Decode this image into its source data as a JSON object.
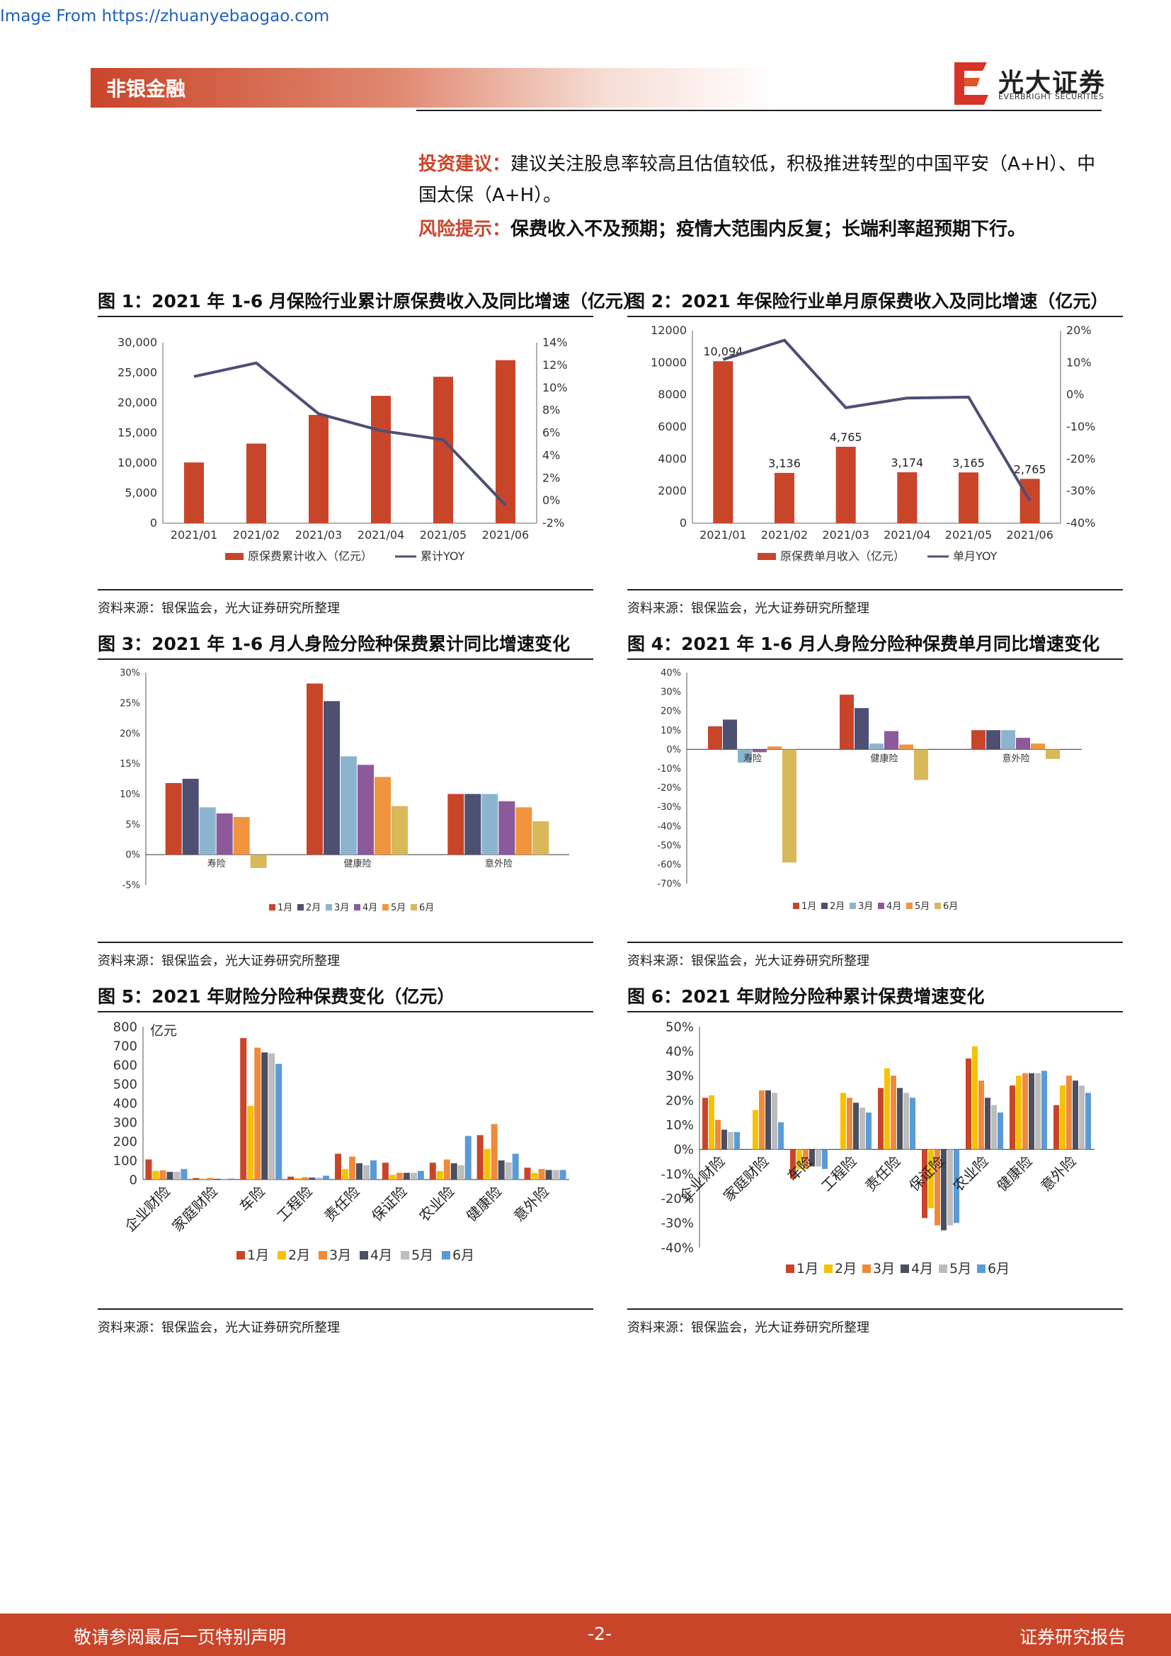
{
  "watermark": "Image From https://zhuanyebaogao.com",
  "header": {
    "section": "非银金融",
    "logo_cn": "光大证券",
    "logo_en": "EVERBRIGHT SECURITIES"
  },
  "advice": {
    "invest_label": "投资建议：",
    "invest_text": "建议关注股息率较高且估值较低，积极推进转型的中国平安（A+H）、中国太保（A+H）。",
    "risk_label": "风险提示：",
    "risk_text": "保费收入不及预期；疫情大范围内反复；长端利率超预期下行。"
  },
  "figures": [
    {
      "title": "图 1：2021 年 1-6 月保险行业累计原保费收入及同比增速（亿元）",
      "source": "资料来源：银保监会，光大证券研究所整理"
    },
    {
      "title": "图 2：2021 年保险行业单月原保费收入及同比增速（亿元）",
      "source": "资料来源：银保监会，光大证券研究所整理"
    },
    {
      "title": "图 3：2021 年 1-6 月人身险分险种保费累计同比增速变化",
      "source": "资料来源：银保监会，光大证券研究所整理"
    },
    {
      "title": "图 4：2021 年 1-6 月人身险分险种保费单月同比增速变化",
      "source": "资料来源：银保监会，光大证券研究所整理"
    },
    {
      "title": "图 5：2021 年财险分险种保费变化（亿元）",
      "source": "资料来源：银保监会，光大证券研究所整理"
    },
    {
      "title": "图 6：2021 年财险分险种累计保费增速变化",
      "source": "资料来源：银保监会，光大证券研究所整理"
    }
  ],
  "colors": {
    "bar_red": "#c9452a",
    "line_navy": "#4d4f73",
    "c1": "#c9452a",
    "c2": "#4d4f73",
    "c3": "#8db4cf",
    "c4": "#8c5a9a",
    "c5": "#f0943f",
    "c6": "#d9b85a",
    "p1": "#c9452a",
    "p2": "#f5c200",
    "p3": "#f08a3a",
    "p4": "#4a5060",
    "p5": "#bdbdbd",
    "p6": "#5b9bd5"
  },
  "chart_data": [
    {
      "type": "bar",
      "categories": [
        "2021/01",
        "2021/02",
        "2021/03",
        "2021/04",
        "2021/05",
        "2021/06"
      ],
      "series": [
        {
          "name": "原保费累计收入（亿元）",
          "values": [
            10094,
            13230,
            17995,
            21169,
            24334,
            27099
          ],
          "axis": "left"
        },
        {
          "name": "累计YOY",
          "type": "line",
          "values": [
            11.0,
            12.2,
            7.7,
            6.2,
            5.4,
            -0.4
          ],
          "axis": "right",
          "unit": "%"
        }
      ],
      "y_ticks": [
        "30,000",
        "25,000",
        "20,000",
        "15,000",
        "10,000",
        "5,000",
        "0"
      ],
      "y2_ticks": [
        "14%",
        "12%",
        "10%",
        "8%",
        "6%",
        "4%",
        "2%",
        "0%",
        "-2%"
      ],
      "ylim": [
        0,
        30000
      ],
      "y2lim": [
        -2,
        14
      ],
      "legend": "bottom"
    },
    {
      "type": "bar",
      "categories": [
        "2021/01",
        "2021/02",
        "2021/03",
        "2021/04",
        "2021/05",
        "2021/06"
      ],
      "series": [
        {
          "name": "原保费单月收入（亿元）",
          "values": [
            10094,
            3136,
            4765,
            3174,
            3165,
            2765
          ],
          "labels": [
            "10,094",
            "3,136",
            "4,765",
            "3,174",
            "3,165",
            "2,765"
          ],
          "axis": "left"
        },
        {
          "name": "单月YOY",
          "type": "line",
          "values": [
            11,
            17,
            -4,
            -1,
            -0.7,
            -33
          ],
          "axis": "right",
          "unit": "%"
        }
      ],
      "y_ticks": [
        "12000",
        "10000",
        "8000",
        "6000",
        "4000",
        "2000",
        "0"
      ],
      "y2_ticks": [
        "20%",
        "10%",
        "0%",
        "-10%",
        "-20%",
        "-30%",
        "-40%"
      ],
      "ylim": [
        0,
        12000
      ],
      "y2lim": [
        -40,
        20
      ],
      "legend": "bottom"
    },
    {
      "type": "bar",
      "categories": [
        "寿险",
        "健康险",
        "意外险"
      ],
      "series": [
        {
          "name": "1月",
          "values": [
            11.8,
            28.2,
            10.0
          ]
        },
        {
          "name": "2月",
          "values": [
            12.5,
            25.3,
            10.0
          ]
        },
        {
          "name": "3月",
          "values": [
            7.8,
            16.2,
            10.0
          ]
        },
        {
          "name": "4月",
          "values": [
            6.8,
            14.8,
            8.8
          ]
        },
        {
          "name": "5月",
          "values": [
            6.2,
            12.8,
            7.8
          ]
        },
        {
          "name": "6月",
          "values": [
            -2.2,
            8.0,
            5.5
          ]
        }
      ],
      "y_ticks": [
        "30%",
        "25%",
        "20%",
        "15%",
        "10%",
        "5%",
        "0%",
        "-5%"
      ],
      "ylim": [
        -5,
        30
      ],
      "legend": "bottom"
    },
    {
      "type": "bar",
      "categories": [
        "寿险",
        "健康险",
        "意外险"
      ],
      "series": [
        {
          "name": "1月",
          "values": [
            12,
            28.5,
            10
          ]
        },
        {
          "name": "2月",
          "values": [
            15.5,
            21.5,
            10
          ]
        },
        {
          "name": "3月",
          "values": [
            -7,
            3,
            10
          ]
        },
        {
          "name": "4月",
          "values": [
            -1.5,
            9.5,
            6
          ]
        },
        {
          "name": "5月",
          "values": [
            1.5,
            2.5,
            3
          ]
        },
        {
          "name": "6月",
          "values": [
            -59,
            -16,
            -5
          ]
        }
      ],
      "y_ticks": [
        "40%",
        "30%",
        "20%",
        "10%",
        "0%",
        "-10%",
        "-20%",
        "-30%",
        "-40%",
        "-50%",
        "-60%",
        "-70%"
      ],
      "ylim": [
        -70,
        40
      ],
      "legend": "bottom"
    },
    {
      "type": "bar",
      "categories": [
        "企业财险",
        "家庭财险",
        "车险",
        "工程险",
        "责任险",
        "保证险",
        "农业险",
        "健康险",
        "意外险"
      ],
      "series": [
        {
          "name": "1月",
          "values": [
            105,
            8,
            740,
            15,
            135,
            88,
            88,
            232,
            62
          ]
        },
        {
          "name": "2月",
          "values": [
            45,
            5,
            385,
            8,
            55,
            25,
            45,
            160,
            35
          ]
        },
        {
          "name": "3月",
          "values": [
            48,
            8,
            690,
            12,
            120,
            35,
            105,
            290,
            55
          ]
        },
        {
          "name": "4月",
          "values": [
            40,
            4,
            665,
            10,
            85,
            35,
            85,
            100,
            50
          ]
        },
        {
          "name": "5月",
          "values": [
            40,
            4,
            660,
            10,
            75,
            35,
            75,
            90,
            50
          ]
        },
        {
          "name": "6月",
          "values": [
            55,
            5,
            605,
            20,
            100,
            45,
            228,
            135,
            50
          ]
        }
      ],
      "y_ticks": [
        "800",
        "700",
        "600",
        "500",
        "400",
        "300",
        "200",
        "100",
        "0"
      ],
      "unit_label": "亿元",
      "ylim": [
        0,
        800
      ],
      "legend": "bottom"
    },
    {
      "type": "bar",
      "categories": [
        "企业财险",
        "家庭财险",
        "车险",
        "工程险",
        "责任险",
        "保证险",
        "农业险",
        "健康险",
        "意外险"
      ],
      "series": [
        {
          "name": "1月",
          "values": [
            21,
            0,
            -12,
            0,
            25,
            -28,
            37,
            26,
            18
          ]
        },
        {
          "name": "2月",
          "values": [
            22,
            16,
            -8,
            23,
            33,
            -24,
            42,
            30,
            26
          ]
        },
        {
          "name": "3月",
          "values": [
            12,
            24,
            -8,
            21,
            30,
            -31,
            28,
            31,
            30
          ]
        },
        {
          "name": "4月",
          "values": [
            8,
            24,
            -7,
            19,
            25,
            -33,
            21,
            31,
            28
          ]
        },
        {
          "name": "5月",
          "values": [
            7,
            23,
            -7,
            17,
            23,
            -31,
            18,
            31,
            26
          ]
        },
        {
          "name": "6月",
          "values": [
            7,
            11,
            -8,
            15,
            21,
            -30,
            15,
            32,
            23
          ]
        }
      ],
      "y_ticks": [
        "50%",
        "40%",
        "30%",
        "20%",
        "10%",
        "0%",
        "-10%",
        "-20%",
        "-30%",
        "-40%"
      ],
      "ylim": [
        -40,
        50
      ],
      "legend": "bottom"
    }
  ],
  "footer": {
    "left": "敬请参阅最后一页特别声明",
    "center": "-2-",
    "right": "证券研究报告"
  }
}
